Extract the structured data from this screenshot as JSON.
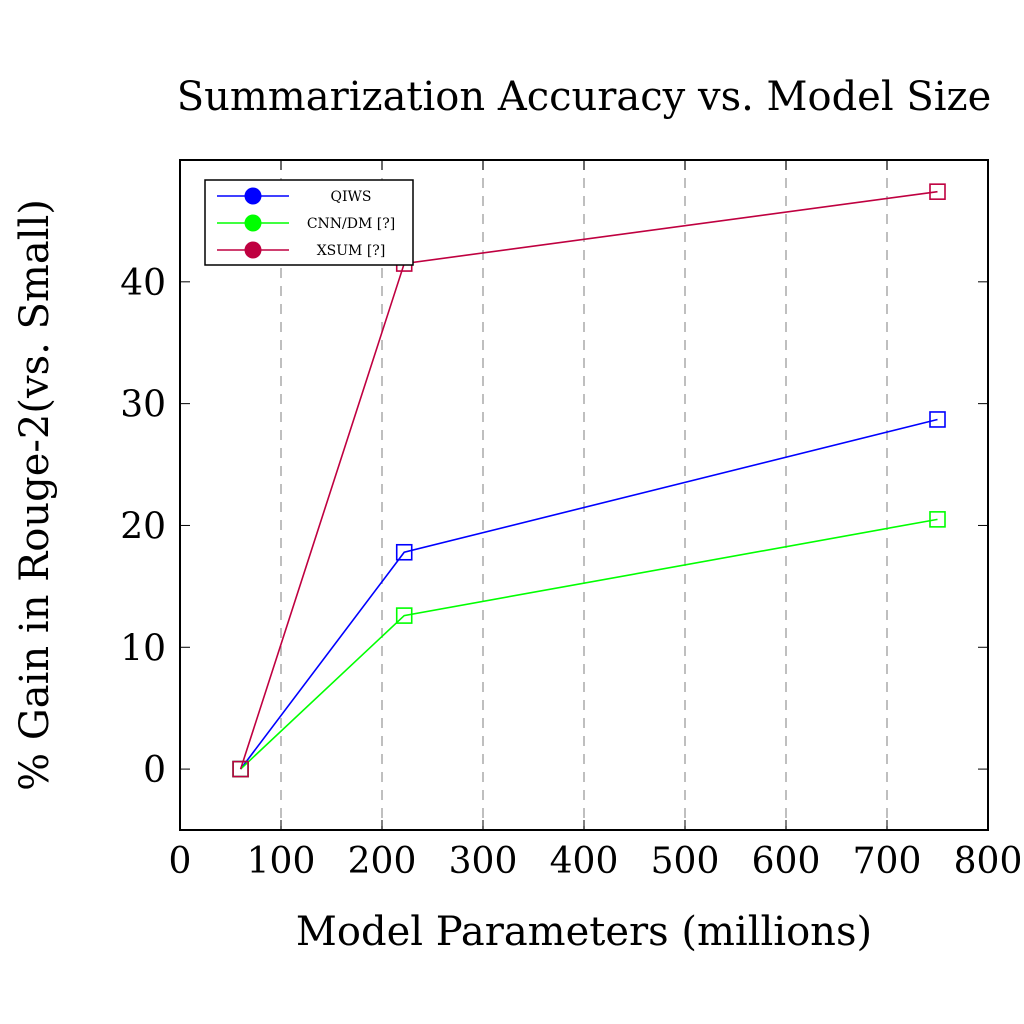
{
  "chart_data": {
    "type": "line",
    "title": "Summarization Accuracy vs. Model Size",
    "xlabel": "Model Parameters (millions)",
    "ylabel": "% Gain in Rouge-2(vs. Small)",
    "xlim": [
      0,
      800
    ],
    "ylim": [
      -5,
      50
    ],
    "xticks": [
      "0",
      "100",
      "200",
      "300",
      "400",
      "500",
      "600",
      "700",
      "800"
    ],
    "yticks": [
      "0",
      "10",
      "20",
      "30",
      "40"
    ],
    "grid": "vertical dashed",
    "legend_position": "top-left",
    "marker": "square",
    "series": [
      {
        "name": "QIWS",
        "color": "#0000ff",
        "points": [
          [
            60,
            0
          ],
          [
            222,
            17.8
          ],
          [
            750,
            28.7
          ]
        ]
      },
      {
        "name": "CNN/DM [?]",
        "color": "#00ff00",
        "points": [
          [
            60,
            0
          ],
          [
            222,
            12.6
          ],
          [
            750,
            20.5
          ]
        ]
      },
      {
        "name": "XSUM [?]",
        "color": "#bf0040",
        "points": [
          [
            60,
            0
          ],
          [
            222,
            41.5
          ],
          [
            750,
            47.4
          ]
        ]
      }
    ]
  }
}
